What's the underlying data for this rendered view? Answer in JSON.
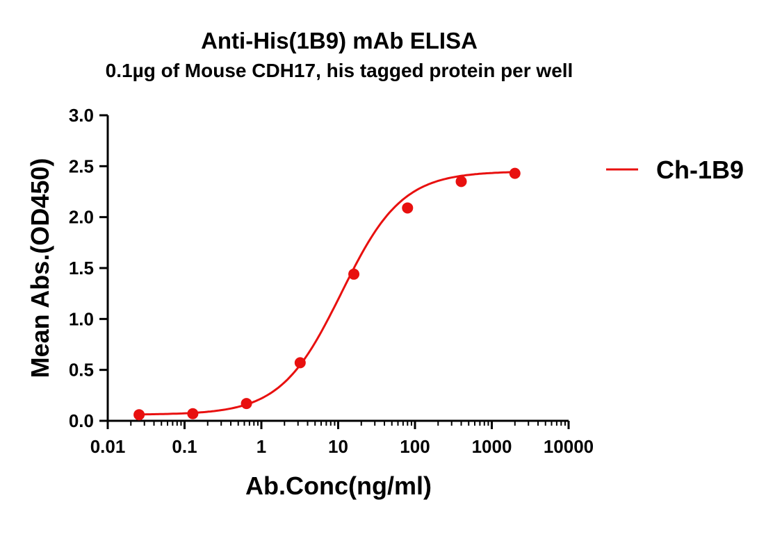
{
  "chart_data": {
    "type": "line",
    "title": "Anti-His(1B9) mAb ELISA",
    "subtitle": "0.1µg of Mouse CDH17, his tagged protein per well",
    "xlabel": "Ab.Conc(ng/ml)",
    "ylabel": "Mean Abs.(OD450)",
    "xscale": "log",
    "xlim": [
      0.01,
      10000
    ],
    "ylim": [
      0,
      3.0
    ],
    "xticks": [
      "0.01",
      "0.1",
      "1",
      "10",
      "100",
      "1000",
      "10000"
    ],
    "yticks": [
      "0.0",
      "0.5",
      "1.0",
      "1.5",
      "2.0",
      "2.5",
      "3.0"
    ],
    "grid": false,
    "legend_position": "right",
    "series": [
      {
        "name": "Ch-1B9",
        "color": "#e8100f",
        "x": [
          0.0256,
          0.128,
          0.64,
          3.2,
          16,
          80,
          400,
          2000
        ],
        "y": [
          0.06,
          0.07,
          0.17,
          0.57,
          1.44,
          2.09,
          2.35,
          2.43
        ],
        "fit": "sigmoidal curve"
      }
    ]
  }
}
